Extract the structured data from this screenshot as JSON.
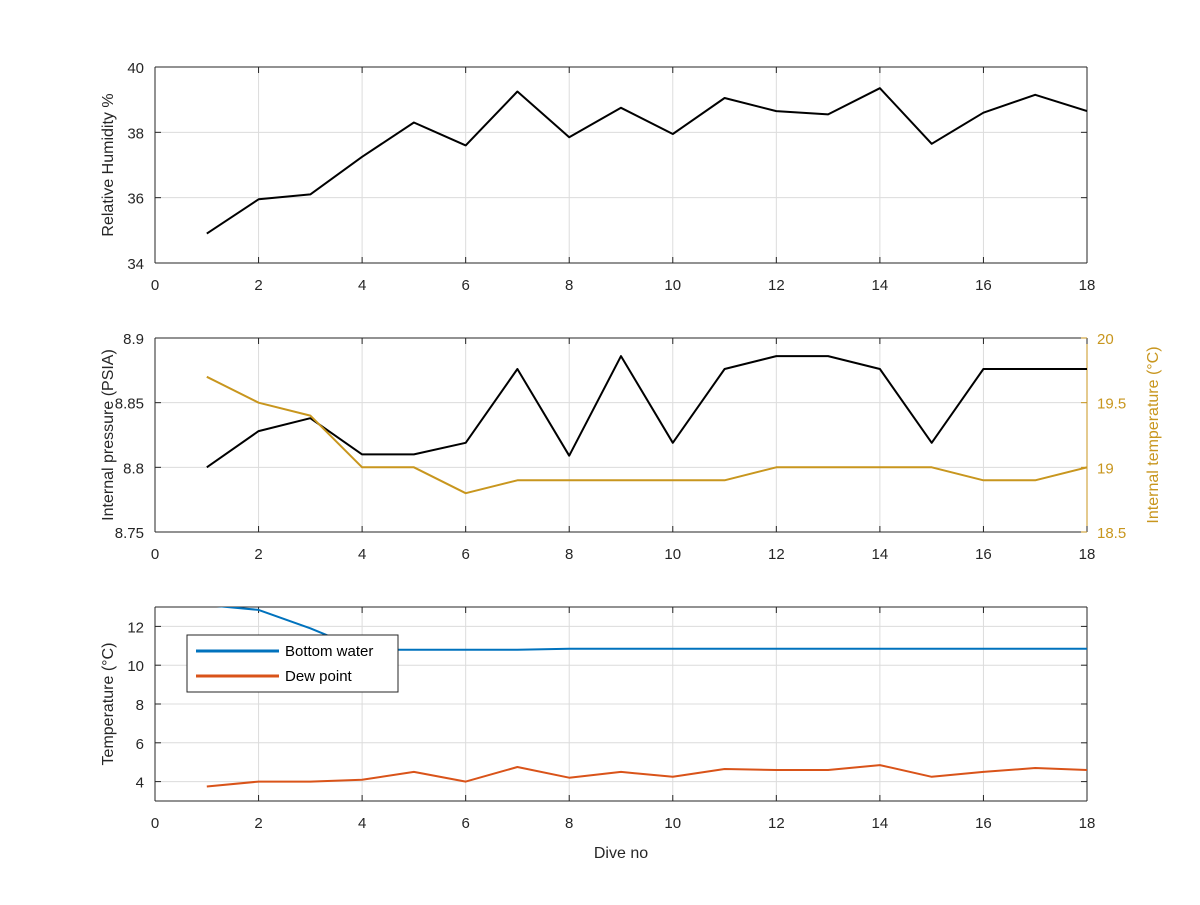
{
  "chart_data": [
    {
      "type": "line",
      "xlabel": "",
      "ylabel": "Relative Humidity %",
      "xlim": [
        0,
        18
      ],
      "ylim": [
        34,
        40
      ],
      "xticks": [
        0,
        2,
        4,
        6,
        8,
        10,
        12,
        14,
        16,
        18
      ],
      "yticks": [
        34,
        36,
        38,
        40
      ],
      "grid": true,
      "colors": {
        "axis": "#262626",
        "grid": "#dcdcdc"
      },
      "series": [
        {
          "color": "#000000",
          "x": [
            1,
            2,
            3,
            4,
            5,
            6,
            7,
            8,
            9,
            10,
            11,
            12,
            13,
            14,
            15,
            16,
            17,
            18
          ],
          "y": [
            34.9,
            35.95,
            36.1,
            37.25,
            38.3,
            37.6,
            39.25,
            37.85,
            38.75,
            37.95,
            39.05,
            38.65,
            38.55,
            39.35,
            37.65,
            38.6,
            39.15,
            38.65
          ]
        }
      ]
    },
    {
      "type": "line",
      "xlabel": "",
      "ylabel": "Internal pressure (PSIA)",
      "ylabel_right": "Internal temperature (°C)",
      "xlim": [
        0,
        18
      ],
      "ylim": [
        8.75,
        8.9
      ],
      "ylim_right": [
        18.5,
        20
      ],
      "xticks": [
        0,
        2,
        4,
        6,
        8,
        10,
        12,
        14,
        16,
        18
      ],
      "yticks": [
        "8.75",
        "8.8",
        "8.85",
        "8.9"
      ],
      "yticks_right": [
        "18.5",
        "19",
        "19.5",
        "20"
      ],
      "grid": true,
      "colors": {
        "axis": "#262626",
        "grid": "#dcdcdc",
        "right_axis": "#c8961e"
      },
      "series": [
        {
          "axis": "left",
          "color": "#000000",
          "x": [
            1,
            2,
            3,
            4,
            5,
            6,
            7,
            8,
            9,
            10,
            11,
            12,
            13,
            14,
            15,
            16,
            17,
            18
          ],
          "y": [
            8.8,
            8.828,
            8.838,
            8.81,
            8.81,
            8.819,
            8.876,
            8.809,
            8.886,
            8.819,
            8.876,
            8.886,
            8.886,
            8.876,
            8.819,
            8.876,
            8.876,
            8.876
          ]
        },
        {
          "axis": "right",
          "color": "#c8961e",
          "x": [
            1,
            2,
            3,
            4,
            5,
            6,
            7,
            8,
            9,
            10,
            11,
            12,
            13,
            14,
            15,
            16,
            17,
            18
          ],
          "y": [
            19.7,
            19.5,
            19.4,
            19.0,
            19.0,
            18.8,
            18.9,
            18.9,
            18.9,
            18.9,
            18.9,
            19.0,
            19.0,
            19.0,
            19.0,
            18.9,
            18.9,
            19.0
          ]
        }
      ]
    },
    {
      "type": "line",
      "xlabel": "Dive no",
      "ylabel": "Temperature (°C)",
      "xlim": [
        0,
        18
      ],
      "ylim": [
        3,
        13
      ],
      "xticks": [
        0,
        2,
        4,
        6,
        8,
        10,
        12,
        14,
        16,
        18
      ],
      "yticks": [
        4,
        6,
        8,
        10,
        12
      ],
      "grid": true,
      "legend_position": "top-left",
      "colors": {
        "axis": "#262626",
        "grid": "#dcdcdc"
      },
      "series": [
        {
          "name": "Bottom water",
          "color": "#0072bd",
          "x": [
            1,
            2,
            3,
            4,
            5,
            6,
            7,
            8,
            9,
            10,
            11,
            12,
            13,
            14,
            15,
            16,
            17,
            18
          ],
          "y": [
            13.1,
            12.85,
            11.9,
            10.8,
            10.8,
            10.8,
            10.8,
            10.85,
            10.85,
            10.85,
            10.85,
            10.85,
            10.85,
            10.85,
            10.85,
            10.85,
            10.85,
            10.85
          ]
        },
        {
          "name": "Dew point",
          "color": "#d95319",
          "x": [
            1,
            2,
            3,
            4,
            5,
            6,
            7,
            8,
            9,
            10,
            11,
            12,
            13,
            14,
            15,
            16,
            17,
            18
          ],
          "y": [
            3.75,
            4.0,
            4.0,
            4.1,
            4.5,
            4.0,
            4.75,
            4.2,
            4.5,
            4.25,
            4.65,
            4.6,
            4.6,
            4.85,
            4.25,
            4.5,
            4.7,
            4.6
          ]
        }
      ]
    }
  ]
}
